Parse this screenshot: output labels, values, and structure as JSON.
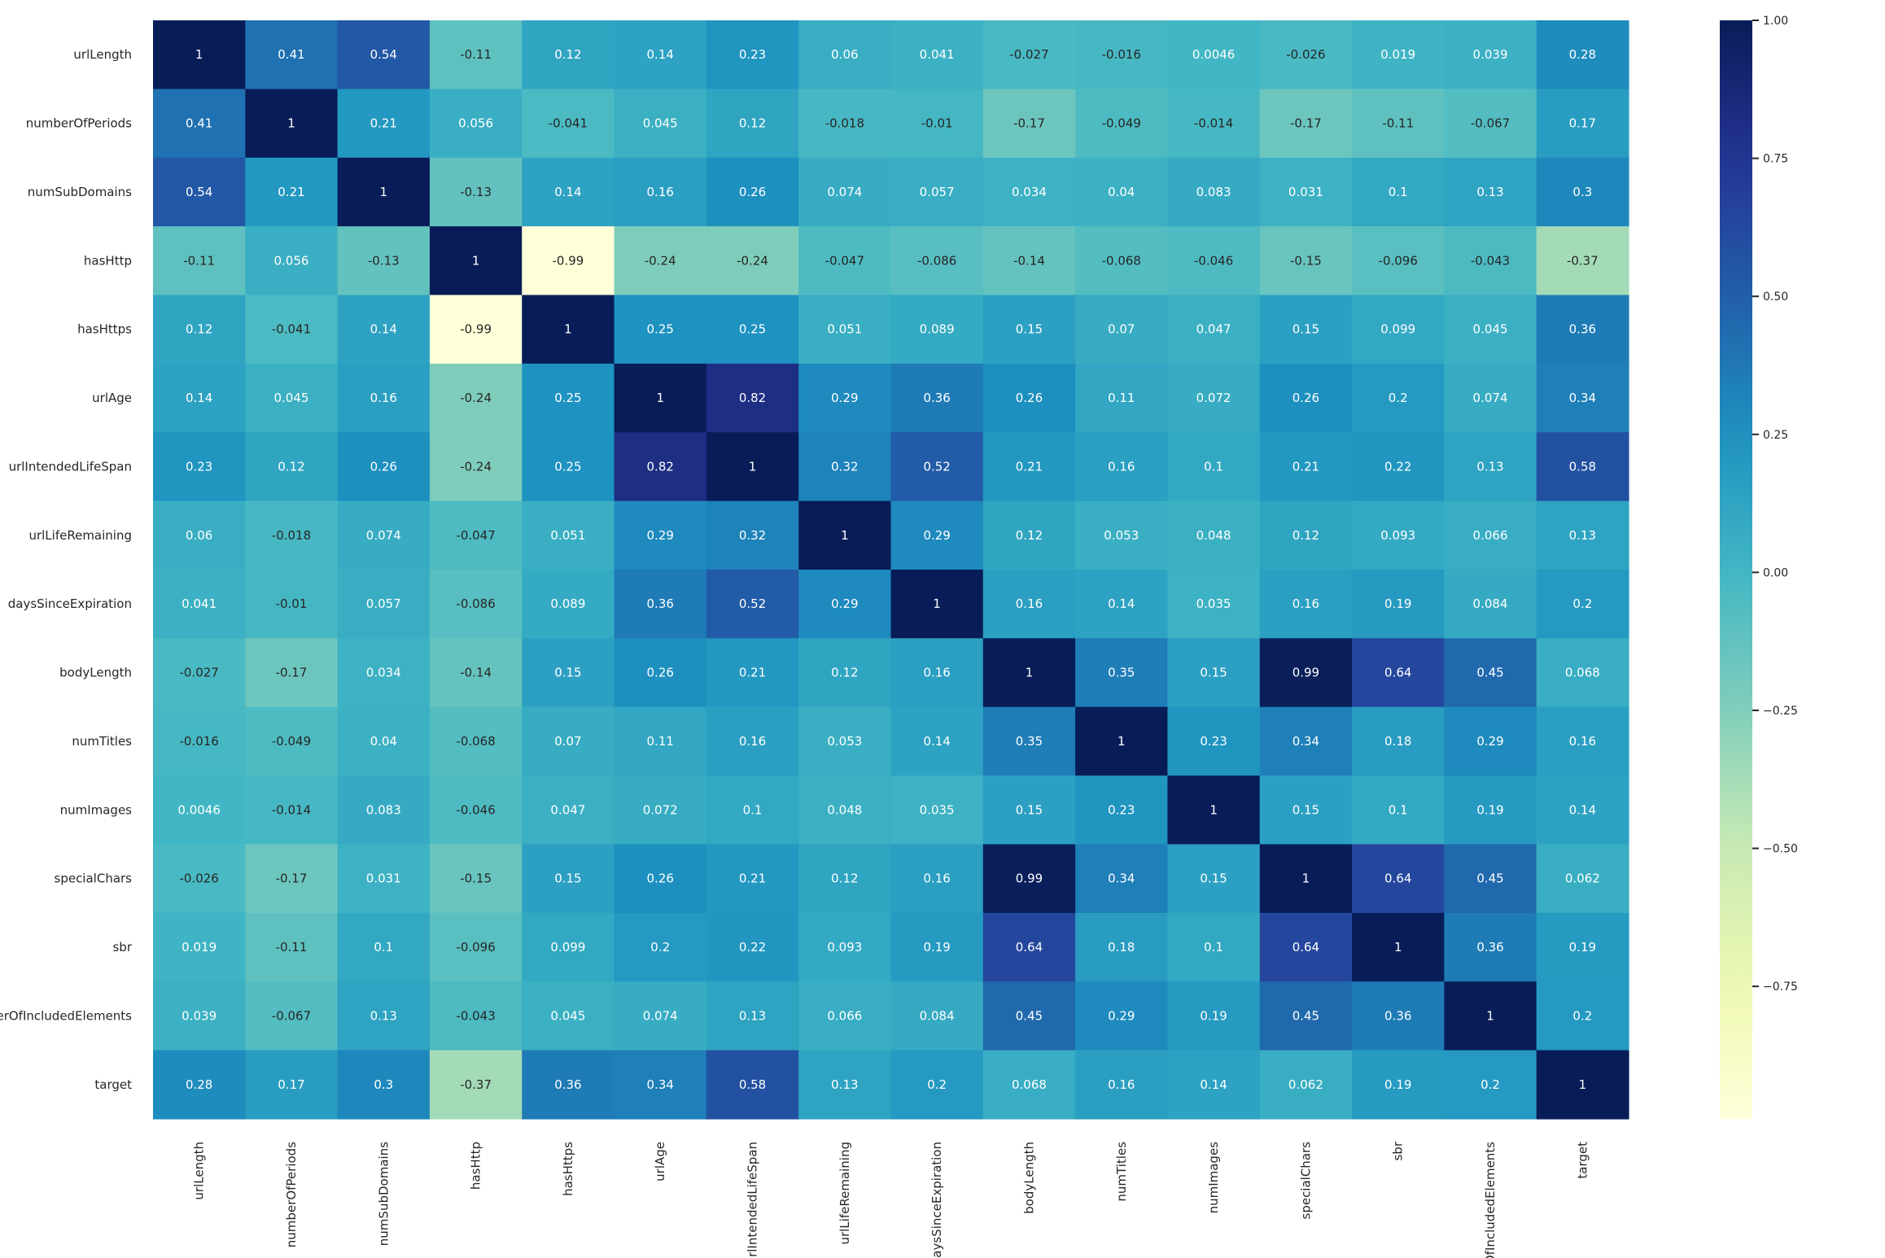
{
  "chart_data": {
    "type": "heatmap",
    "title": "",
    "xlabel": "",
    "ylabel": "",
    "labels": [
      "urlLength",
      "numberOfPeriods",
      "numSubDomains",
      "hasHttp",
      "hasHttps",
      "urlAge",
      "urlIntendedLifeSpan",
      "urlLifeRemaining",
      "daysSinceExpiration",
      "bodyLength",
      "numTitles",
      "numImages",
      "specialChars",
      "sbr",
      "numberOfIncludedElements",
      "target"
    ],
    "y_labels": [
      "urlLength",
      "numberOfPeriods",
      "numSubDomains",
      "hasHttp",
      "hasHttps",
      "urlAge",
      "urlIntendedLifeSpan",
      "urlLifeRemaining",
      "daysSinceExpiration",
      "bodyLength",
      "numTitles",
      "numImages",
      "specialChars",
      "sbr",
      "berOfIncludedElements",
      "target"
    ],
    "x_labels": [
      "urlLength",
      "numberOfPeriods",
      "numSubDomains",
      "hasHttp",
      "hasHttps",
      "urlAge",
      "urlIntendedLifeSpan",
      "urlLifeRemaining",
      "daysSinceExpiration",
      "bodyLength",
      "numTitles",
      "numImages",
      "specialChars",
      "sbr",
      "berOfIncludedElements",
      "target"
    ],
    "values": [
      [
        "1",
        "0.41",
        "0.54",
        "-0.11",
        "0.12",
        "0.14",
        "0.23",
        "0.06",
        "0.041",
        "-0.027",
        "-0.016",
        "0.0046",
        "-0.026",
        "0.019",
        "0.039",
        "0.28"
      ],
      [
        "0.41",
        "1",
        "0.21",
        "0.056",
        "-0.041",
        "0.045",
        "0.12",
        "-0.018",
        "-0.01",
        "-0.17",
        "-0.049",
        "-0.014",
        "-0.17",
        "-0.11",
        "-0.067",
        "0.17"
      ],
      [
        "0.54",
        "0.21",
        "1",
        "-0.13",
        "0.14",
        "0.16",
        "0.26",
        "0.074",
        "0.057",
        "0.034",
        "0.04",
        "0.083",
        "0.031",
        "0.1",
        "0.13",
        "0.3"
      ],
      [
        "-0.11",
        "0.056",
        "-0.13",
        "1",
        "-0.99",
        "-0.24",
        "-0.24",
        "-0.047",
        "-0.086",
        "-0.14",
        "-0.068",
        "-0.046",
        "-0.15",
        "-0.096",
        "-0.043",
        "-0.37"
      ],
      [
        "0.12",
        "-0.041",
        "0.14",
        "-0.99",
        "1",
        "0.25",
        "0.25",
        "0.051",
        "0.089",
        "0.15",
        "0.07",
        "0.047",
        "0.15",
        "0.099",
        "0.045",
        "0.36"
      ],
      [
        "0.14",
        "0.045",
        "0.16",
        "-0.24",
        "0.25",
        "1",
        "0.82",
        "0.29",
        "0.36",
        "0.26",
        "0.11",
        "0.072",
        "0.26",
        "0.2",
        "0.074",
        "0.34"
      ],
      [
        "0.23",
        "0.12",
        "0.26",
        "-0.24",
        "0.25",
        "0.82",
        "1",
        "0.32",
        "0.52",
        "0.21",
        "0.16",
        "0.1",
        "0.21",
        "0.22",
        "0.13",
        "0.58"
      ],
      [
        "0.06",
        "-0.018",
        "0.074",
        "-0.047",
        "0.051",
        "0.29",
        "0.32",
        "1",
        "0.29",
        "0.12",
        "0.053",
        "0.048",
        "0.12",
        "0.093",
        "0.066",
        "0.13"
      ],
      [
        "0.041",
        "-0.01",
        "0.057",
        "-0.086",
        "0.089",
        "0.36",
        "0.52",
        "0.29",
        "1",
        "0.16",
        "0.14",
        "0.035",
        "0.16",
        "0.19",
        "0.084",
        "0.2"
      ],
      [
        "-0.027",
        "-0.17",
        "0.034",
        "-0.14",
        "0.15",
        "0.26",
        "0.21",
        "0.12",
        "0.16",
        "1",
        "0.35",
        "0.15",
        "0.99",
        "0.64",
        "0.45",
        "0.068"
      ],
      [
        "-0.016",
        "-0.049",
        "0.04",
        "-0.068",
        "0.07",
        "0.11",
        "0.16",
        "0.053",
        "0.14",
        "0.35",
        "1",
        "0.23",
        "0.34",
        "0.18",
        "0.29",
        "0.16"
      ],
      [
        "0.0046",
        "-0.014",
        "0.083",
        "-0.046",
        "0.047",
        "0.072",
        "0.1",
        "0.048",
        "0.035",
        "0.15",
        "0.23",
        "1",
        "0.15",
        "0.1",
        "0.19",
        "0.14"
      ],
      [
        "-0.026",
        "-0.17",
        "0.031",
        "-0.15",
        "0.15",
        "0.26",
        "0.21",
        "0.12",
        "0.16",
        "0.99",
        "0.34",
        "0.15",
        "1",
        "0.64",
        "0.45",
        "0.062"
      ],
      [
        "0.019",
        "-0.11",
        "0.1",
        "-0.096",
        "0.099",
        "0.2",
        "0.22",
        "0.093",
        "0.19",
        "0.64",
        "0.18",
        "0.1",
        "0.64",
        "1",
        "0.36",
        "0.19"
      ],
      [
        "0.039",
        "-0.067",
        "0.13",
        "-0.043",
        "0.045",
        "0.074",
        "0.13",
        "0.066",
        "0.084",
        "0.45",
        "0.29",
        "0.19",
        "0.45",
        "0.36",
        "1",
        "0.2"
      ],
      [
        "0.28",
        "0.17",
        "0.3",
        "-0.37",
        "0.36",
        "0.34",
        "0.58",
        "0.13",
        "0.2",
        "0.068",
        "0.16",
        "0.14",
        "0.062",
        "0.19",
        "0.2",
        "1"
      ]
    ],
    "colormap": "YlGnBu",
    "colorbar": {
      "range": [
        -0.99,
        1.0
      ],
      "ticks": [
        1.0,
        0.75,
        0.5,
        0.25,
        0.0,
        -0.25,
        -0.5,
        -0.75
      ],
      "tick_labels": [
        "1.00",
        "0.75",
        "0.50",
        "0.25",
        "0.00",
        "−0.25",
        "−0.50",
        "−0.75"
      ],
      "placement": "right"
    },
    "grid": false,
    "annotated": true
  }
}
